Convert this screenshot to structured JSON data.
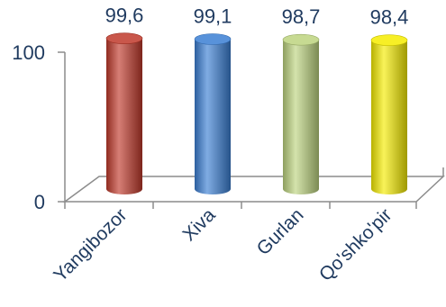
{
  "chart_data": {
    "type": "bar",
    "categories": [
      "Yangibozor",
      "Xiva",
      "Gurlan",
      "Qo'shko'pir"
    ],
    "values": [
      99.6,
      99.1,
      98.7,
      98.4
    ],
    "value_labels": [
      "99,6",
      "99,1",
      "98,7",
      "98,4"
    ],
    "ylim": [
      0,
      100
    ],
    "ytick_labels": [
      "0",
      "100"
    ],
    "grid": false,
    "legend": "none",
    "colors": [
      "#c0392b",
      "#3b7fd4",
      "#bdd47f",
      "#f5ec00"
    ],
    "title": "",
    "xlabel": "",
    "ylabel": ""
  }
}
